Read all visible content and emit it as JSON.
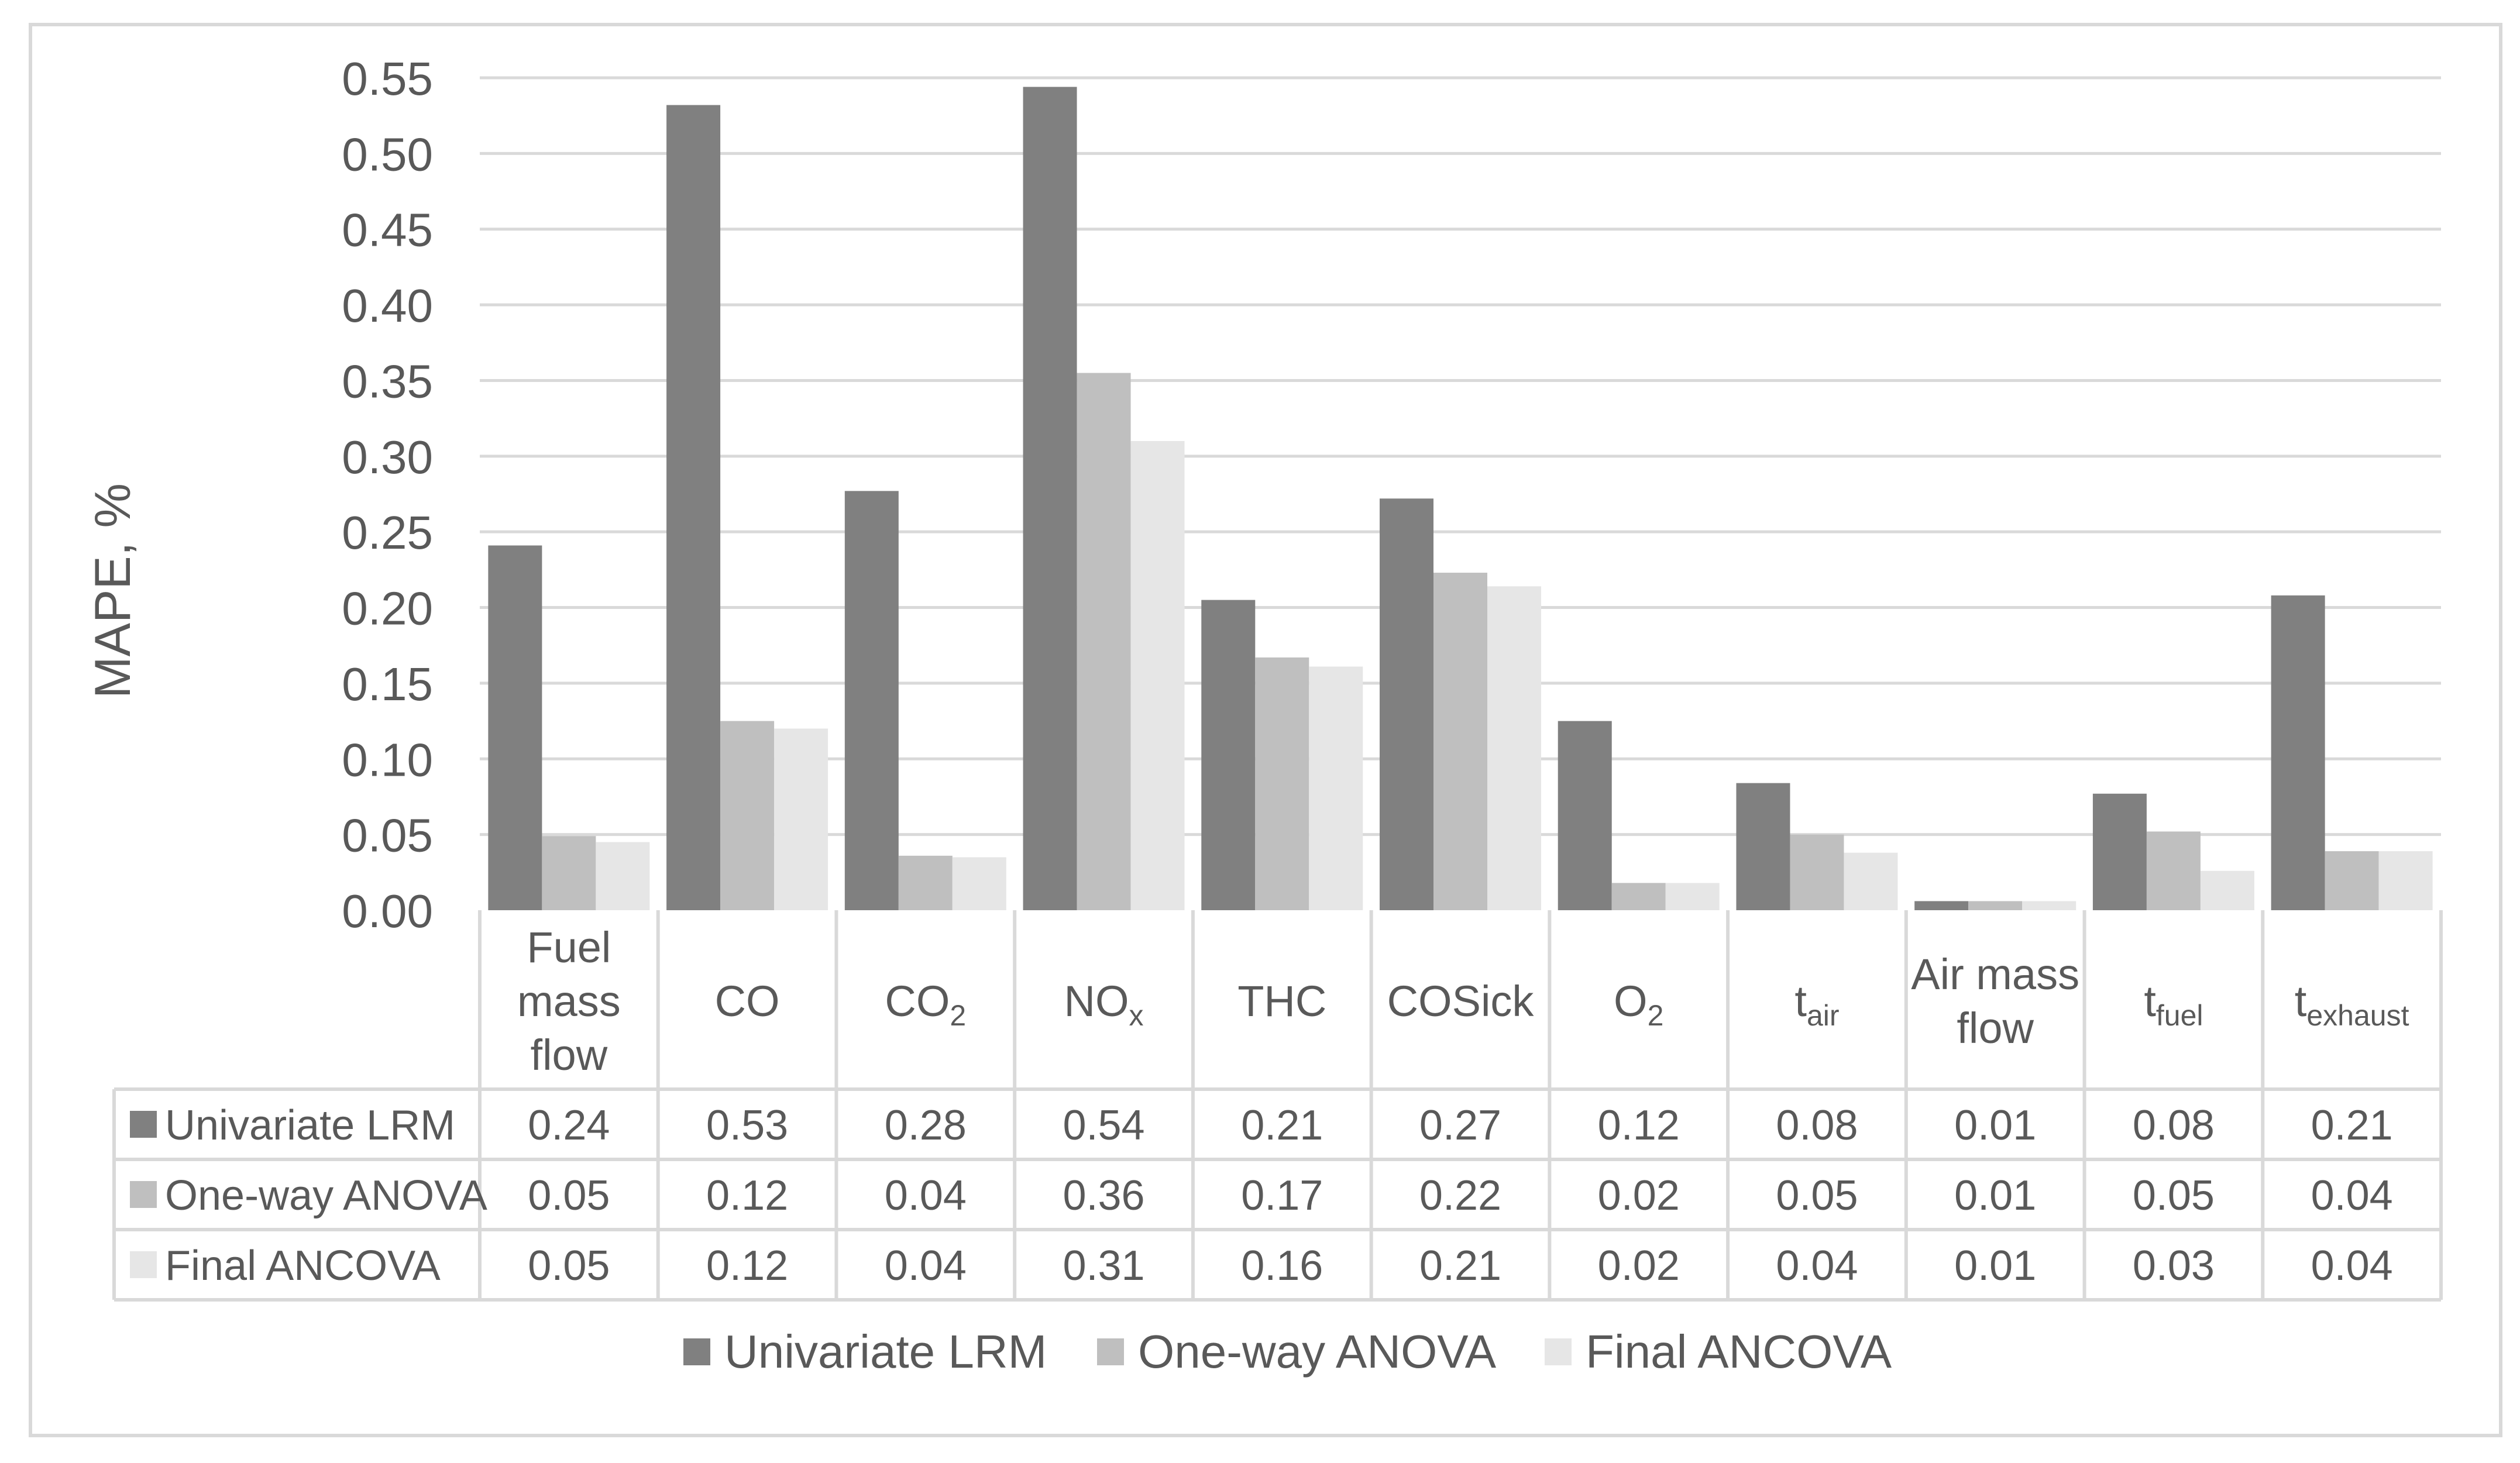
{
  "chart_data": {
    "type": "bar",
    "title": "",
    "xlabel": "",
    "ylabel": "MAPE, %",
    "ylim": [
      0,
      0.55
    ],
    "ytick_step": 0.05,
    "grid": true,
    "legend_position": "bottom",
    "categories": [
      {
        "main": "Fuel mass flow",
        "sub": ""
      },
      {
        "main": "CO",
        "sub": ""
      },
      {
        "main": "CO",
        "sub": "2"
      },
      {
        "main": "NO",
        "sub": "x"
      },
      {
        "main": "THC",
        "sub": ""
      },
      {
        "main": "COSick",
        "sub": ""
      },
      {
        "main": "O",
        "sub": "2"
      },
      {
        "main": "t",
        "sub": "air"
      },
      {
        "main": "Air mass flow",
        "sub": ""
      },
      {
        "main": "t",
        "sub": "fuel"
      },
      {
        "main": "t",
        "sub": "exhaust"
      }
    ],
    "series": [
      {
        "name": "Univariate LRM",
        "color": "#808080",
        "values": [
          0.241,
          0.532,
          0.277,
          0.544,
          0.205,
          0.272,
          0.125,
          0.084,
          0.006,
          0.077,
          0.208
        ],
        "labels": [
          "0.24",
          "0.53",
          "0.28",
          "0.54",
          "0.21",
          "0.27",
          "0.12",
          "0.08",
          "0.01",
          "0.08",
          "0.21"
        ]
      },
      {
        "name": "One-way ANOVA",
        "color": "#bfbfbf",
        "values": [
          0.049,
          0.125,
          0.036,
          0.355,
          0.167,
          0.223,
          0.018,
          0.05,
          0.006,
          0.052,
          0.039
        ],
        "labels": [
          "0.05",
          "0.12",
          "0.04",
          "0.36",
          "0.17",
          "0.22",
          "0.02",
          "0.05",
          "0.01",
          "0.05",
          "0.04"
        ]
      },
      {
        "name": "Final ANCOVA",
        "color": "#e6e6e6",
        "values": [
          0.045,
          0.12,
          0.035,
          0.31,
          0.161,
          0.214,
          0.018,
          0.038,
          0.006,
          0.026,
          0.039
        ],
        "labels": [
          "0.05",
          "0.12",
          "0.04",
          "0.31",
          "0.16",
          "0.21",
          "0.02",
          "0.04",
          "0.01",
          "0.03",
          "0.04"
        ]
      }
    ]
  }
}
